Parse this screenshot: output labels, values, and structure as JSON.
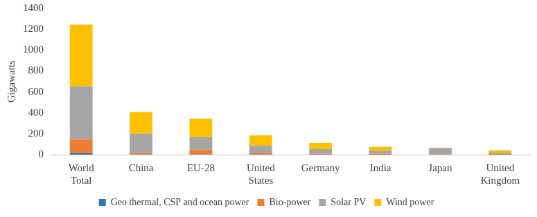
{
  "chart_data": {
    "type": "bar",
    "y_label": "Gigawatts",
    "categories": [
      "World Total",
      "China",
      "EU-28",
      "United States",
      "Germany",
      "India",
      "Japan",
      "United Kingdom"
    ],
    "series": [
      {
        "name": "Geo thermal, CSP and ocean power",
        "color": "#2e75b6",
        "values": [
          14,
          1,
          3,
          4,
          0,
          0,
          1,
          0
        ]
      },
      {
        "name": "Bio-power",
        "color": "#ed7d31",
        "values": [
          130,
          15,
          45,
          15,
          8,
          10,
          4,
          6
        ]
      },
      {
        "name": "Solar PV",
        "color": "#a5a5a5",
        "values": [
          510,
          185,
          120,
          65,
          45,
          28,
          56,
          13
        ]
      },
      {
        "name": "Wind power",
        "color": "#ffc000",
        "values": [
          590,
          205,
          175,
          100,
          59,
          37,
          4,
          22
        ]
      }
    ],
    "ylim": [
      0,
      1400
    ],
    "yticks": [
      0,
      200,
      400,
      600,
      800,
      1000,
      1200,
      1400
    ],
    "stacked": true,
    "grid": false,
    "legend": "bottom"
  }
}
